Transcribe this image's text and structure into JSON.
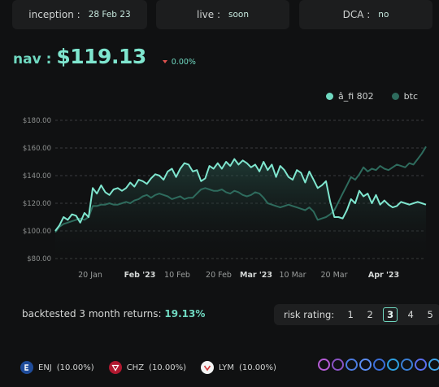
{
  "stats": [
    {
      "label": "inception :",
      "value": "28 Feb 23"
    },
    {
      "label": "live :",
      "value": "soon"
    },
    {
      "label": "DCA :",
      "value": "no"
    }
  ],
  "nav": {
    "label": "nav :",
    "value": "$119.13",
    "change": "0.00%"
  },
  "legend": {
    "fund": "â_fi 802",
    "btc": "btc"
  },
  "colors": {
    "accent": "#6fd8c0",
    "btc": "#2e6b5d",
    "down": "#e0524f"
  },
  "chart_data": {
    "type": "line",
    "y_ticks": [
      "$180.00",
      "$160.00",
      "$140.00",
      "$120.00",
      "$100.00",
      "$80.00"
    ],
    "x_ticks": [
      {
        "label": "20 Jan",
        "bold": false
      },
      {
        "label": "Feb '23",
        "bold": true
      },
      {
        "label": "10 Feb",
        "bold": false
      },
      {
        "label": "20 Feb",
        "bold": false
      },
      {
        "label": "Mar '23",
        "bold": true
      },
      {
        "label": "10 Mar",
        "bold": false
      },
      {
        "label": "20 Mar",
        "bold": false
      },
      {
        "label": "Apr '23",
        "bold": true
      }
    ],
    "ylim": [
      80,
      180
    ],
    "grid": true,
    "x_count": 90,
    "series": [
      {
        "name": "â_fi 802",
        "values": [
          100,
          104,
          110,
          108,
          112,
          111,
          106,
          113,
          110,
          131,
          127,
          133,
          128,
          126,
          130,
          131,
          129,
          131,
          135,
          132,
          137,
          136,
          134,
          138,
          141,
          140,
          137,
          143,
          145,
          139,
          145,
          149,
          148,
          143,
          144,
          136,
          138,
          147,
          145,
          149,
          145,
          150,
          147,
          152,
          148,
          151,
          149,
          146,
          148,
          143,
          150,
          144,
          148,
          139,
          147,
          144,
          139,
          137,
          144,
          142,
          135,
          143,
          137,
          131,
          133,
          136,
          121,
          110,
          110,
          109,
          115,
          123,
          120,
          129,
          125,
          127,
          120,
          126,
          119,
          122,
          119,
          117,
          118,
          121,
          120,
          119,
          120,
          121,
          120,
          119
        ]
      },
      {
        "name": "btc",
        "values": [
          99,
          103,
          105,
          106,
          107,
          108,
          109,
          108,
          110,
          118,
          118,
          119,
          119,
          120,
          119,
          119,
          120,
          121,
          120,
          122,
          123,
          125,
          126,
          124,
          126,
          127,
          126,
          125,
          123,
          124,
          125,
          123,
          124,
          124,
          127,
          130,
          131,
          130,
          129,
          129,
          130,
          128,
          127,
          129,
          128,
          126,
          125,
          126,
          128,
          127,
          124,
          120,
          119,
          118,
          117,
          118,
          119,
          118,
          117,
          116,
          115,
          117,
          114,
          108,
          109,
          110,
          112,
          115,
          121,
          127,
          133,
          139,
          137,
          141,
          146,
          143,
          145,
          144,
          147,
          145,
          144,
          146,
          148,
          147,
          146,
          149,
          148,
          152,
          156,
          161
        ]
      }
    ]
  },
  "returns": {
    "label": "backtested 3 month returns:",
    "value": "19.13%"
  },
  "risk": {
    "label": "risk rating:",
    "options": [
      "1",
      "2",
      "3",
      "4",
      "5"
    ],
    "selected": "3"
  },
  "holdings": [
    {
      "symbol": "ENJ",
      "pct": "(10.00%)",
      "icon": "enj-token-icon",
      "color": "#7aa8f5"
    },
    {
      "symbol": "CHZ",
      "pct": "(10.00%)",
      "icon": "chz-token-icon",
      "color": "#e0314a"
    },
    {
      "symbol": "LYM",
      "pct": "(10.00%)",
      "icon": "lym-token-icon",
      "color": "#f4f4f4"
    }
  ],
  "protocols": [
    {
      "icon": "protocol-icon-1",
      "color": "#b65cd6"
    },
    {
      "icon": "protocol-icon-2",
      "color": "#8a53c4"
    },
    {
      "icon": "protocol-icon-3",
      "color": "#4c7be0"
    },
    {
      "icon": "protocol-icon-4",
      "color": "#5b8df0"
    },
    {
      "icon": "protocol-icon-5",
      "color": "#3b6fd9"
    },
    {
      "icon": "protocol-icon-6",
      "color": "#2ea0e0"
    },
    {
      "icon": "protocol-icon-7",
      "color": "#3a7fd6"
    },
    {
      "icon": "protocol-icon-8",
      "color": "#5a6ff0"
    },
    {
      "icon": "protocol-icon-9",
      "color": "#3fa3e6"
    }
  ]
}
